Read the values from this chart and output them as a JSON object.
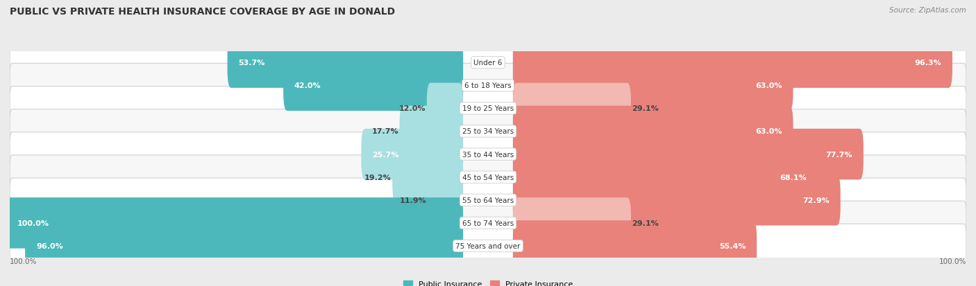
{
  "title": "PUBLIC VS PRIVATE HEALTH INSURANCE COVERAGE BY AGE IN DONALD",
  "source": "Source: ZipAtlas.com",
  "categories": [
    "Under 6",
    "6 to 18 Years",
    "19 to 25 Years",
    "25 to 34 Years",
    "35 to 44 Years",
    "45 to 54 Years",
    "55 to 64 Years",
    "65 to 74 Years",
    "75 Years and over"
  ],
  "public_values": [
    53.7,
    42.0,
    12.0,
    17.7,
    25.7,
    19.2,
    11.9,
    100.0,
    96.0
  ],
  "private_values": [
    96.3,
    63.0,
    29.1,
    63.0,
    77.7,
    68.1,
    72.9,
    29.1,
    55.4
  ],
  "public_color": "#4db8bb",
  "private_color": "#e8827a",
  "public_color_light": "#a8dfe0",
  "private_color_light": "#f2b8b2",
  "background_color": "#ebebeb",
  "row_color_odd": "#f7f7f7",
  "row_color_even": "#ffffff",
  "axis_max": 100.0,
  "title_fontsize": 10,
  "source_fontsize": 7.5,
  "value_fontsize": 8,
  "category_fontsize": 7.5,
  "legend_fontsize": 8
}
